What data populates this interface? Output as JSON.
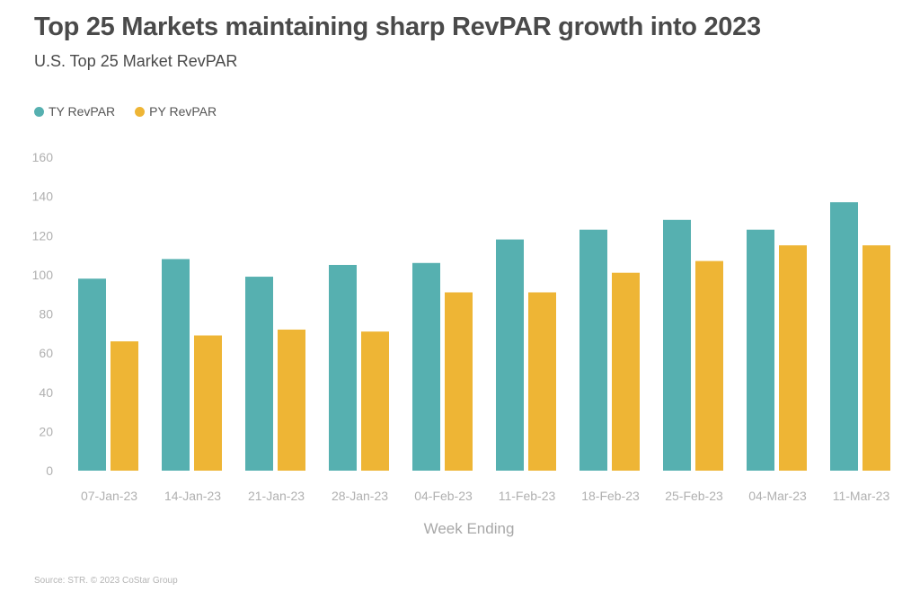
{
  "header": {
    "title": "Top 25 Markets maintaining sharp RevPAR growth into 2023",
    "subtitle": "U.S. Top 25 Market RevPAR"
  },
  "source": "Source: STR. © 2023 CoStar Group",
  "colors": {
    "ty": "#56b0b0",
    "py": "#eeb535",
    "axis_text": "#b0b0b0"
  },
  "chart_data": {
    "type": "bar",
    "title": "Top 25 Markets maintaining sharp RevPAR growth into 2023",
    "subtitle": "U.S. Top 25 Market RevPAR",
    "xlabel": "Week Ending",
    "ylabel": "",
    "ylim": [
      0,
      160
    ],
    "yticks": [
      0,
      20,
      40,
      60,
      80,
      100,
      120,
      140,
      160
    ],
    "grid": false,
    "legend_position": "top-left",
    "categories": [
      "07-Jan-23",
      "14-Jan-23",
      "21-Jan-23",
      "28-Jan-23",
      "04-Feb-23",
      "11-Feb-23",
      "18-Feb-23",
      "25-Feb-23",
      "04-Mar-23",
      "11-Mar-23"
    ],
    "series": [
      {
        "name": "TY RevPAR",
        "color": "#56b0b0",
        "values": [
          98,
          108,
          99,
          105,
          106,
          118,
          123,
          128,
          123,
          137
        ]
      },
      {
        "name": "PY RevPAR",
        "color": "#eeb535",
        "values": [
          66,
          69,
          72,
          71,
          91,
          91,
          101,
          107,
          115,
          115
        ]
      }
    ]
  }
}
